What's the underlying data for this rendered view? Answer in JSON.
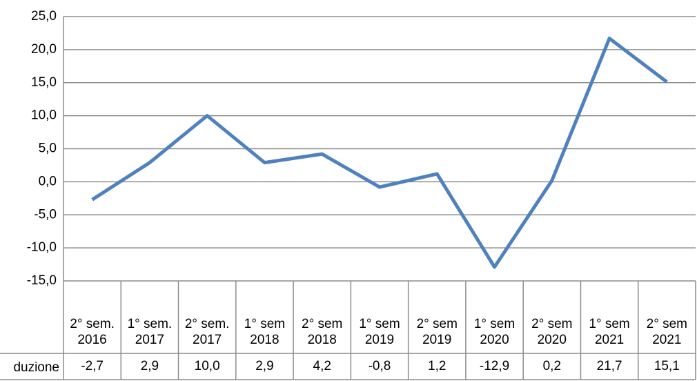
{
  "chart_data": {
    "type": "line",
    "categories": [
      "2° sem. 2016",
      "1° sem. 2017",
      "2° sem. 2017",
      "1° sem 2018",
      "2° sem 2018",
      "1° sem 2019",
      "2° sem 2019",
      "1° sem 2020",
      "2° sem 2020",
      "1° sem 2021",
      "2° sem 2021"
    ],
    "series": [
      {
        "name": "duzione",
        "color": "#4f81bd",
        "values": [
          -2.7,
          2.9,
          10.0,
          2.9,
          4.2,
          -0.8,
          1.2,
          -12.9,
          0.2,
          21.7,
          15.1
        ],
        "value_labels": [
          "-2,7",
          "2,9",
          "10,0",
          "2,9",
          "4,2",
          "-0,8",
          "1,2",
          "-12,9",
          "0,2",
          "21,7",
          "15,1"
        ]
      }
    ],
    "ylim": [
      -15,
      25
    ],
    "yticks": [
      {
        "value": -15,
        "label": "-15,0"
      },
      {
        "value": -10,
        "label": "-10,0"
      },
      {
        "value": -5,
        "label": "-5,0"
      },
      {
        "value": 0,
        "label": "0,0"
      },
      {
        "value": 5,
        "label": "5,0"
      },
      {
        "value": 10,
        "label": "10,0"
      },
      {
        "value": 15,
        "label": "15,0"
      },
      {
        "value": 20,
        "label": "20,0"
      },
      {
        "value": 25,
        "label": "25,0"
      }
    ],
    "grid": true,
    "data_table": true
  }
}
